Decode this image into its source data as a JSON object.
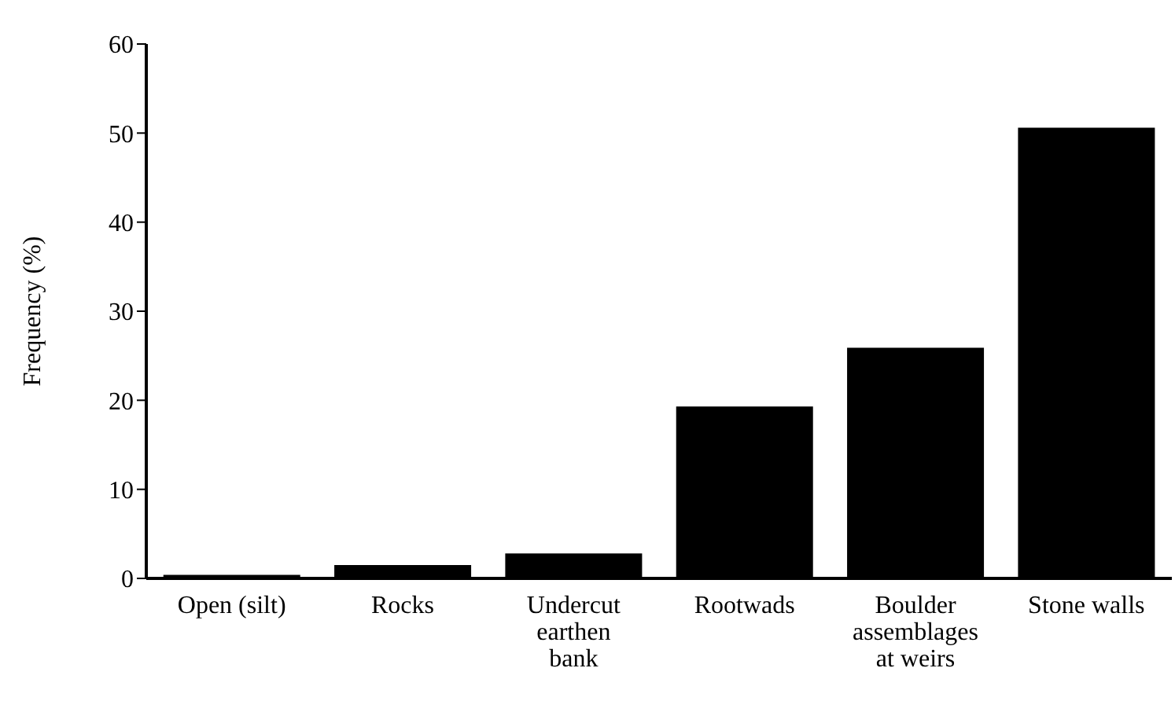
{
  "chart_data": {
    "type": "bar",
    "ylabel": "Frequency (%)",
    "categories": [
      "Open (silt)",
      "Rocks",
      "Undercut earthen bank",
      "Rootwads",
      "Boulder assemblages at weirs",
      "Stone walls"
    ],
    "values": [
      0.4,
      1.5,
      2.8,
      19.3,
      25.9,
      50.6
    ],
    "color": "#000000",
    "ylim": [
      0,
      60
    ],
    "yticks": [
      0,
      10,
      20,
      30,
      40,
      50,
      60
    ],
    "grid": false,
    "legend": false
  }
}
